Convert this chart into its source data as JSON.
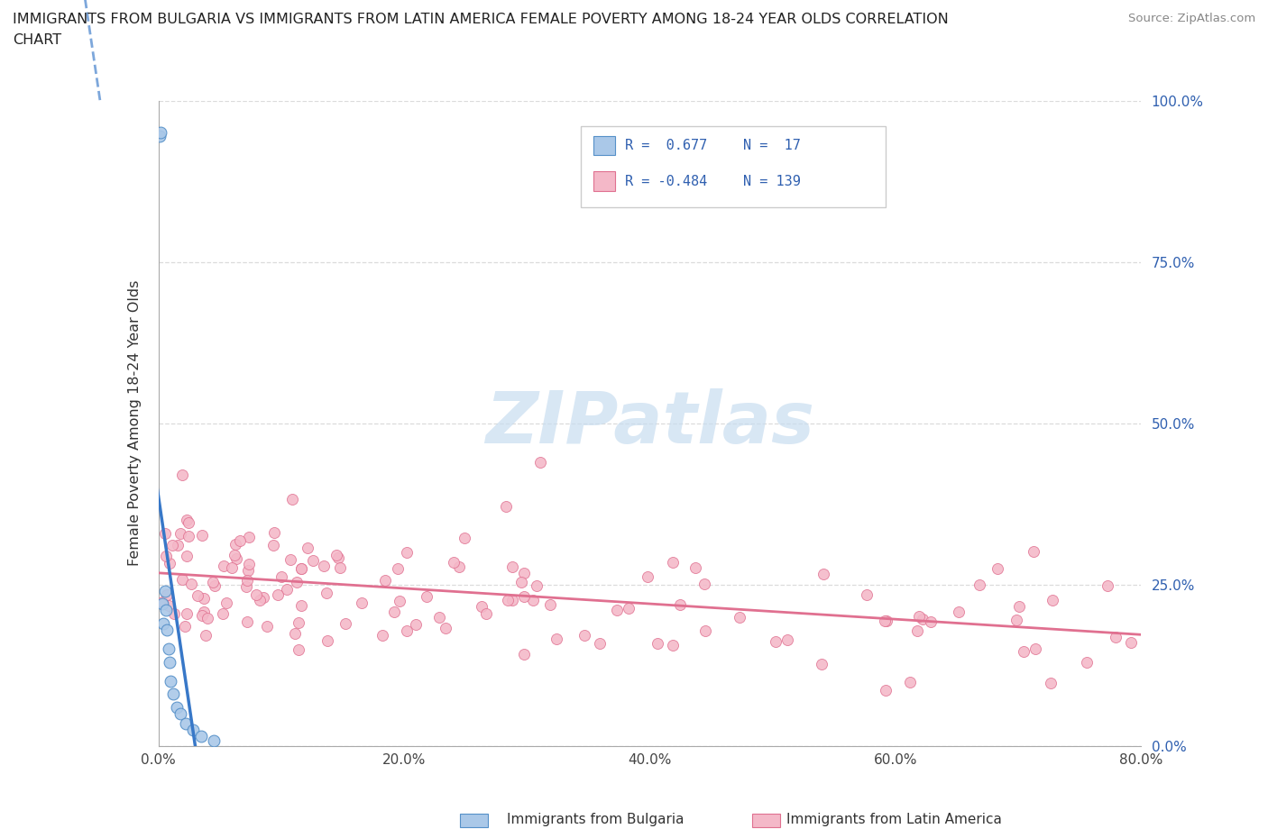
{
  "title_line1": "IMMIGRANTS FROM BULGARIA VS IMMIGRANTS FROM LATIN AMERICA FEMALE POVERTY AMONG 18-24 YEAR OLDS CORRELATION",
  "title_line2": "CHART",
  "ylabel": "Female Poverty Among 18-24 Year Olds",
  "source": "Source: ZipAtlas.com",
  "legend_r1": "R =  0.677",
  "legend_n1": "N =  17",
  "legend_r2": "R = -0.484",
  "legend_n2": "N = 139",
  "bg_color": "#ffffff",
  "blue_fill": "#aac8e8",
  "blue_edge": "#5590c8",
  "pink_fill": "#f4b8c8",
  "pink_edge": "#e07090",
  "blue_line": "#3878c8",
  "pink_line": "#e07090",
  "watermark_color": "#c8ddf0",
  "legend_text_color": "#3060b0",
  "grid_color": "#d8d8d8",
  "axis_color": "#aaaaaa",
  "title_color": "#222222",
  "source_color": "#888888",
  "xlabel_color": "#444444",
  "ylabel_color": "#333333",
  "bottom_legend_color": "#333333",
  "bg_blue_scatter_x": [
    0.001,
    0.002,
    0.003,
    0.004,
    0.005,
    0.006,
    0.007,
    0.008,
    0.009,
    0.01,
    0.012,
    0.015,
    0.018,
    0.022,
    0.028,
    0.035,
    0.045
  ],
  "bg_blue_scatter_y": [
    0.945,
    0.95,
    0.22,
    0.19,
    0.24,
    0.21,
    0.18,
    0.15,
    0.13,
    0.1,
    0.08,
    0.06,
    0.05,
    0.035,
    0.025,
    0.015,
    0.008
  ],
  "xlim_max": 0.8,
  "ylim_max": 1.0,
  "xticks": [
    0,
    0.2,
    0.4,
    0.6,
    0.8
  ],
  "yticks": [
    0,
    0.25,
    0.5,
    0.75,
    1.0
  ]
}
